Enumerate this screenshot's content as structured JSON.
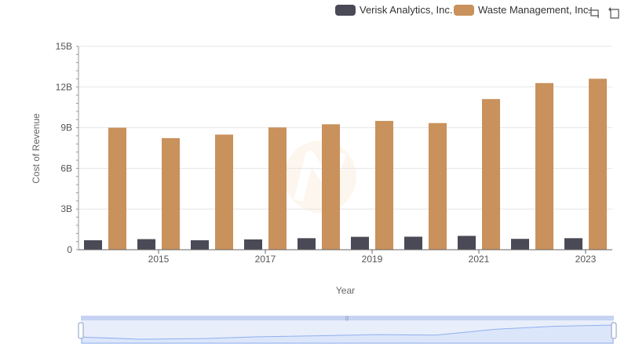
{
  "colors": {
    "verisk": "#4a4a56",
    "waste": "#c9915c",
    "grid": "#e6e6e6",
    "axis": "#999999",
    "zoom_fill": "#dce6fb",
    "zoom_line": "#8fb0ee",
    "zoom_handle": "#c6d3f2"
  },
  "toolbar": {
    "zoom_icon": "zoom-select-icon",
    "reset_icon": "zoom-reset-icon"
  },
  "chart_data": {
    "type": "bar",
    "title": "",
    "xlabel": "Year",
    "ylabel": "Cost of Revenue",
    "categories": [
      "2014",
      "2015",
      "2016",
      "2017",
      "2018",
      "2019",
      "2020",
      "2021",
      "2022",
      "2023"
    ],
    "x_tick_labels": [
      "2015",
      "2017",
      "2019",
      "2021",
      "2023"
    ],
    "y_tick_labels": [
      "0",
      "3B",
      "6B",
      "9B",
      "12B",
      "15B"
    ],
    "ylim": [
      0,
      15000000000
    ],
    "grid": true,
    "legend_position": "top-right",
    "series": [
      {
        "name": "Verisk Analytics, Inc.",
        "values": [
          700000000,
          780000000,
          700000000,
          760000000,
          850000000,
          950000000,
          960000000,
          1020000000,
          800000000,
          850000000
        ]
      },
      {
        "name": "Waste Management, Inc.",
        "values": [
          9000000000,
          8230000000,
          8490000000,
          9020000000,
          9250000000,
          9500000000,
          9340000000,
          11110000000,
          12290000000,
          12610000000
        ]
      }
    ]
  }
}
